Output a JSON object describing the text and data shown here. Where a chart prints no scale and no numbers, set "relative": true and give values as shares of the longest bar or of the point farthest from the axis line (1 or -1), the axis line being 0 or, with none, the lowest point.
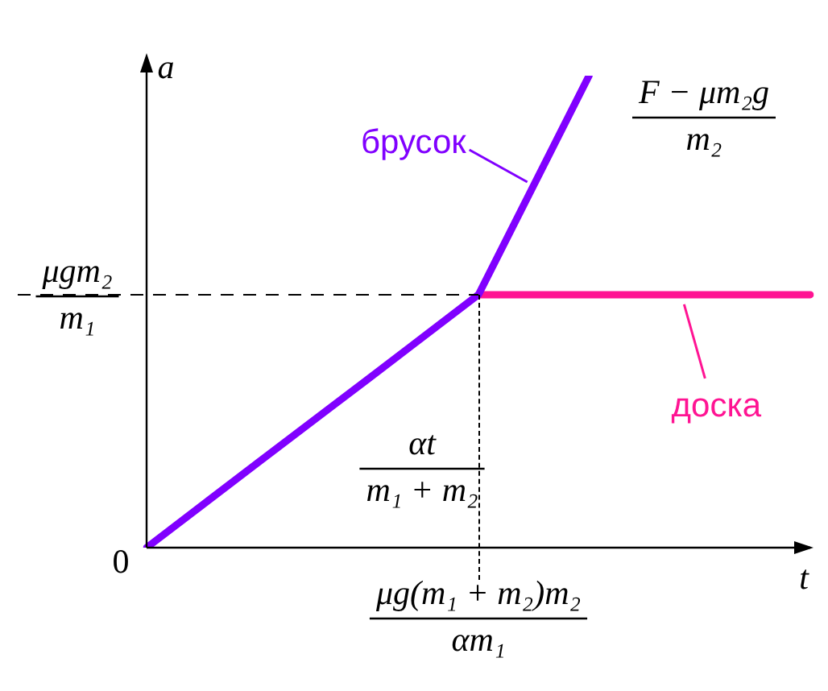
{
  "chart_data": {
    "type": "line",
    "xlabel": "t",
    "ylabel": "a",
    "relative": true,
    "legend": "top left",
    "marker": "none",
    "line_style": "solid",
    "categories": [
      null,
      null,
      null,
      null,
      null,
      null,
      null
    ],
    "series": [
      {
        "name": "брусок",
        "color": "#8000ff",
        "values": [
          0,
          0.179,
          0.357,
          0.536,
          1,
          null,
          null
        ]
      },
      {
        "name": "доска",
        "color": "#ff1493",
        "values": [
          null,
          null,
          null,
          0.536,
          0.536,
          0.536,
          0.536
        ]
      }
    ],
    "ref_lines": [
      {
        "axis": "y",
        "value": 0.536,
        "line_style": "dashed",
        "color": "#000000"
      }
    ],
    "annotations": [
      "μgm₂",
      "m₁",
      "μg(m₁ + m₂)m₂",
      "αm₁",
      "F − μm₂g",
      "m₂",
      "αt",
      "m₁ + m₂",
      "0"
    ]
  }
}
